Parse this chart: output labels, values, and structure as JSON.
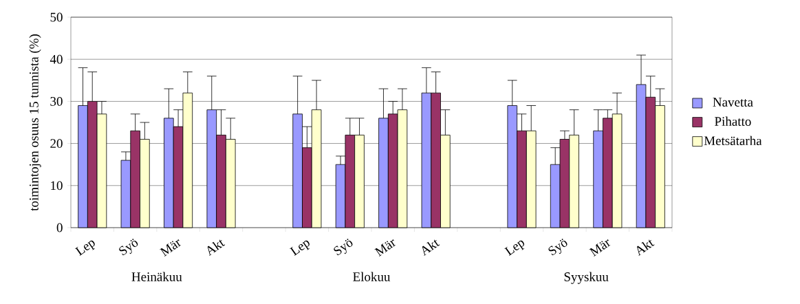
{
  "chart_data": {
    "type": "bar",
    "ylabel": "toimintojen osuus 15 tunnista (%)",
    "categories": [
      "Lep",
      "Syö",
      "Mär",
      "Akt",
      null,
      "Lep",
      "Syö",
      "Mär",
      "Akt",
      null,
      "Lep",
      "Syö",
      "Mär",
      "Akt"
    ],
    "series": [
      {
        "name": "Navetta",
        "color": "#9999ff",
        "values": [
          29,
          16,
          26,
          28,
          null,
          27,
          15,
          26,
          32,
          null,
          29,
          15,
          23,
          34
        ],
        "errors": [
          [
            29,
            38
          ],
          [
            16,
            18
          ],
          [
            26,
            33
          ],
          [
            28,
            36
          ],
          null,
          [
            27,
            36
          ],
          [
            15,
            17
          ],
          [
            26,
            33
          ],
          [
            32,
            38
          ],
          null,
          [
            29,
            35
          ],
          [
            15,
            19
          ],
          [
            23,
            28
          ],
          [
            34,
            41
          ]
        ]
      },
      {
        "name": "Pihatto",
        "color": "#993366",
        "values": [
          30,
          23,
          24,
          22,
          null,
          19,
          22,
          27,
          32,
          null,
          23,
          21,
          26,
          31
        ],
        "errors": [
          [
            30,
            37
          ],
          [
            23,
            27
          ],
          [
            24,
            28
          ],
          [
            22,
            28
          ],
          null,
          [
            19,
            24
          ],
          [
            22,
            26
          ],
          [
            27,
            30
          ],
          [
            32,
            37
          ],
          null,
          [
            23,
            27
          ],
          [
            21,
            23
          ],
          [
            26,
            28
          ],
          [
            31,
            36
          ]
        ]
      },
      {
        "name": "Metsätarha",
        "color": "#ffffcc",
        "values": [
          27,
          21,
          32,
          21,
          null,
          28,
          22,
          28,
          22,
          null,
          23,
          22,
          27,
          29
        ],
        "errors": [
          [
            27,
            30
          ],
          [
            21,
            25
          ],
          [
            32,
            37
          ],
          [
            21,
            26
          ],
          null,
          [
            28,
            35
          ],
          [
            22,
            26
          ],
          [
            28,
            33
          ],
          [
            22,
            28
          ],
          null,
          [
            23,
            29
          ],
          [
            22,
            28
          ],
          [
            27,
            32
          ],
          [
            29,
            33
          ]
        ]
      }
    ],
    "annotations": [
      "Heinäkuu",
      "Elokuu",
      "Syyskuu"
    ],
    "ylim": [
      0,
      50
    ],
    "yticks": [
      0,
      10,
      20,
      30,
      40,
      50
    ],
    "grid": "y",
    "legend": "right"
  }
}
